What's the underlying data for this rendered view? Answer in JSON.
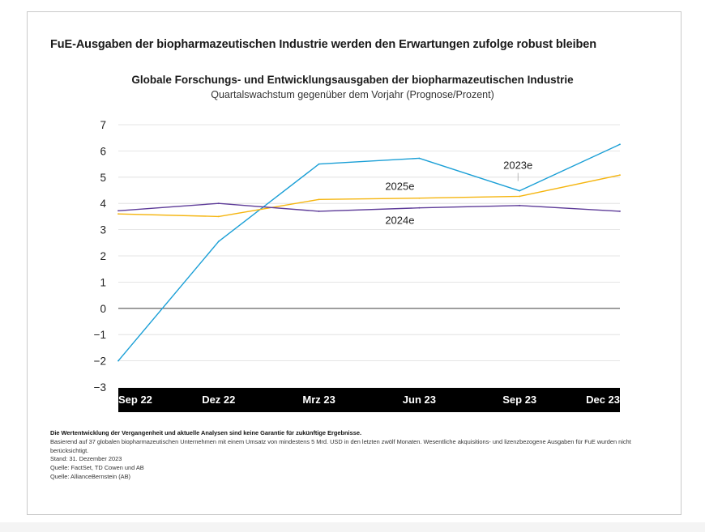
{
  "headline": "FuE-Ausgaben der biopharmazeutischen Industrie werden den Erwartungen zufolge robust bleiben",
  "colors": {
    "2023e": "#1a9fd6",
    "2025e": "#f5b50f",
    "2024e": "#5e3c99",
    "zero_line": "#555555",
    "grid": "#dddddd",
    "axis_band": "#000000"
  },
  "chart_data": {
    "type": "line",
    "title": "Globale Forschungs- und Entwicklungsausgaben der biopharmazeutischen Industrie",
    "subtitle": "Quartalswachstum gegenüber dem Vorjahr (Prognose/Prozent)",
    "categories": [
      "Sep 22",
      "Dez 22",
      "Mrz 23",
      "Jun 23",
      "Sep 23",
      "Dec 23"
    ],
    "ylim": [
      -3,
      7
    ],
    "yticks": [
      7,
      6,
      5,
      4,
      3,
      2,
      1,
      0,
      -1,
      -2,
      -3
    ],
    "ytick_labels": [
      "7",
      "6",
      "5",
      "4",
      "3",
      "2",
      "1",
      "0",
      "−1",
      "−2",
      "−3"
    ],
    "series": [
      {
        "name": "2023e",
        "color_key": "2023e",
        "values": [
          -2.0,
          2.55,
          5.5,
          5.72,
          4.48,
          6.25
        ]
      },
      {
        "name": "2025e",
        "color_key": "2025e",
        "values": [
          3.6,
          3.5,
          4.15,
          4.2,
          4.27,
          5.08
        ]
      },
      {
        "name": "2024e",
        "color_key": "2024e",
        "values": [
          3.72,
          4.0,
          3.7,
          3.83,
          3.92,
          3.7
        ]
      }
    ],
    "annotations": [
      {
        "text": "2023e",
        "series": "2023e"
      },
      {
        "text": "2025e",
        "series": "2025e"
      },
      {
        "text": "2024e",
        "series": "2024e"
      }
    ],
    "grid": true
  },
  "notes": {
    "disclaimer": "Die Wertentwicklung der Vergangenheit und aktuelle Analysen sind keine Garantie für zukünftige Ergebnisse.",
    "basis": "Basierend auf 37 globalen biopharmazeutischen Unternehmen mit einem Umsatz von mindestens 5 Mrd. USD in den letzten zwölf Monaten. Wesentliche akquisitions- und lizenzbezogene Ausgaben für FuE wurden nicht berücksichtigt.",
    "date": "Stand: 31. Dezember 2023",
    "source1": "Quelle: FactSet, TD Cowen und AB",
    "source2": "Quelle: AllianceBernstein (AB)"
  }
}
